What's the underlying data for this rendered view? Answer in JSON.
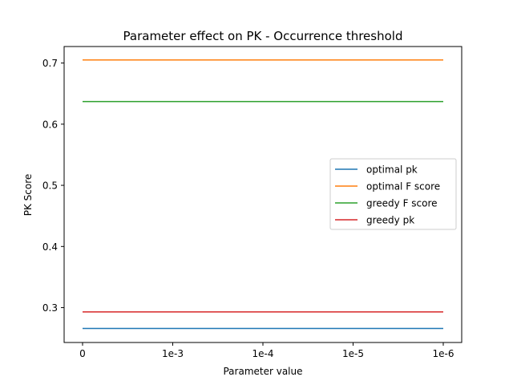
{
  "chart_data": {
    "type": "line",
    "title": "Parameter effect on PK - Occurrence threshold",
    "xlabel": "Parameter value",
    "ylabel": "PK Score",
    "categories": [
      "0",
      "1e-3",
      "1e-4",
      "1e-5",
      "1e-6"
    ],
    "yticks": [
      0.3,
      0.4,
      0.5,
      0.6,
      0.7
    ],
    "yticklabels": [
      "0.3",
      "0.4",
      "0.5",
      "0.6",
      "0.7"
    ],
    "ylim": [
      0.243,
      0.727
    ],
    "grid": false,
    "legend_position": "center-right",
    "series": [
      {
        "name": "optimal pk",
        "color": "#1f77b4",
        "values": [
          0.266,
          0.266,
          0.266,
          0.266,
          0.266
        ]
      },
      {
        "name": "optimal F score",
        "color": "#ff7f0e",
        "values": [
          0.705,
          0.705,
          0.705,
          0.705,
          0.705
        ]
      },
      {
        "name": "greedy F score",
        "color": "#2ca02c",
        "values": [
          0.637,
          0.637,
          0.637,
          0.637,
          0.637
        ]
      },
      {
        "name": "greedy pk",
        "color": "#d62728",
        "values": [
          0.293,
          0.293,
          0.293,
          0.293,
          0.293
        ]
      }
    ]
  }
}
